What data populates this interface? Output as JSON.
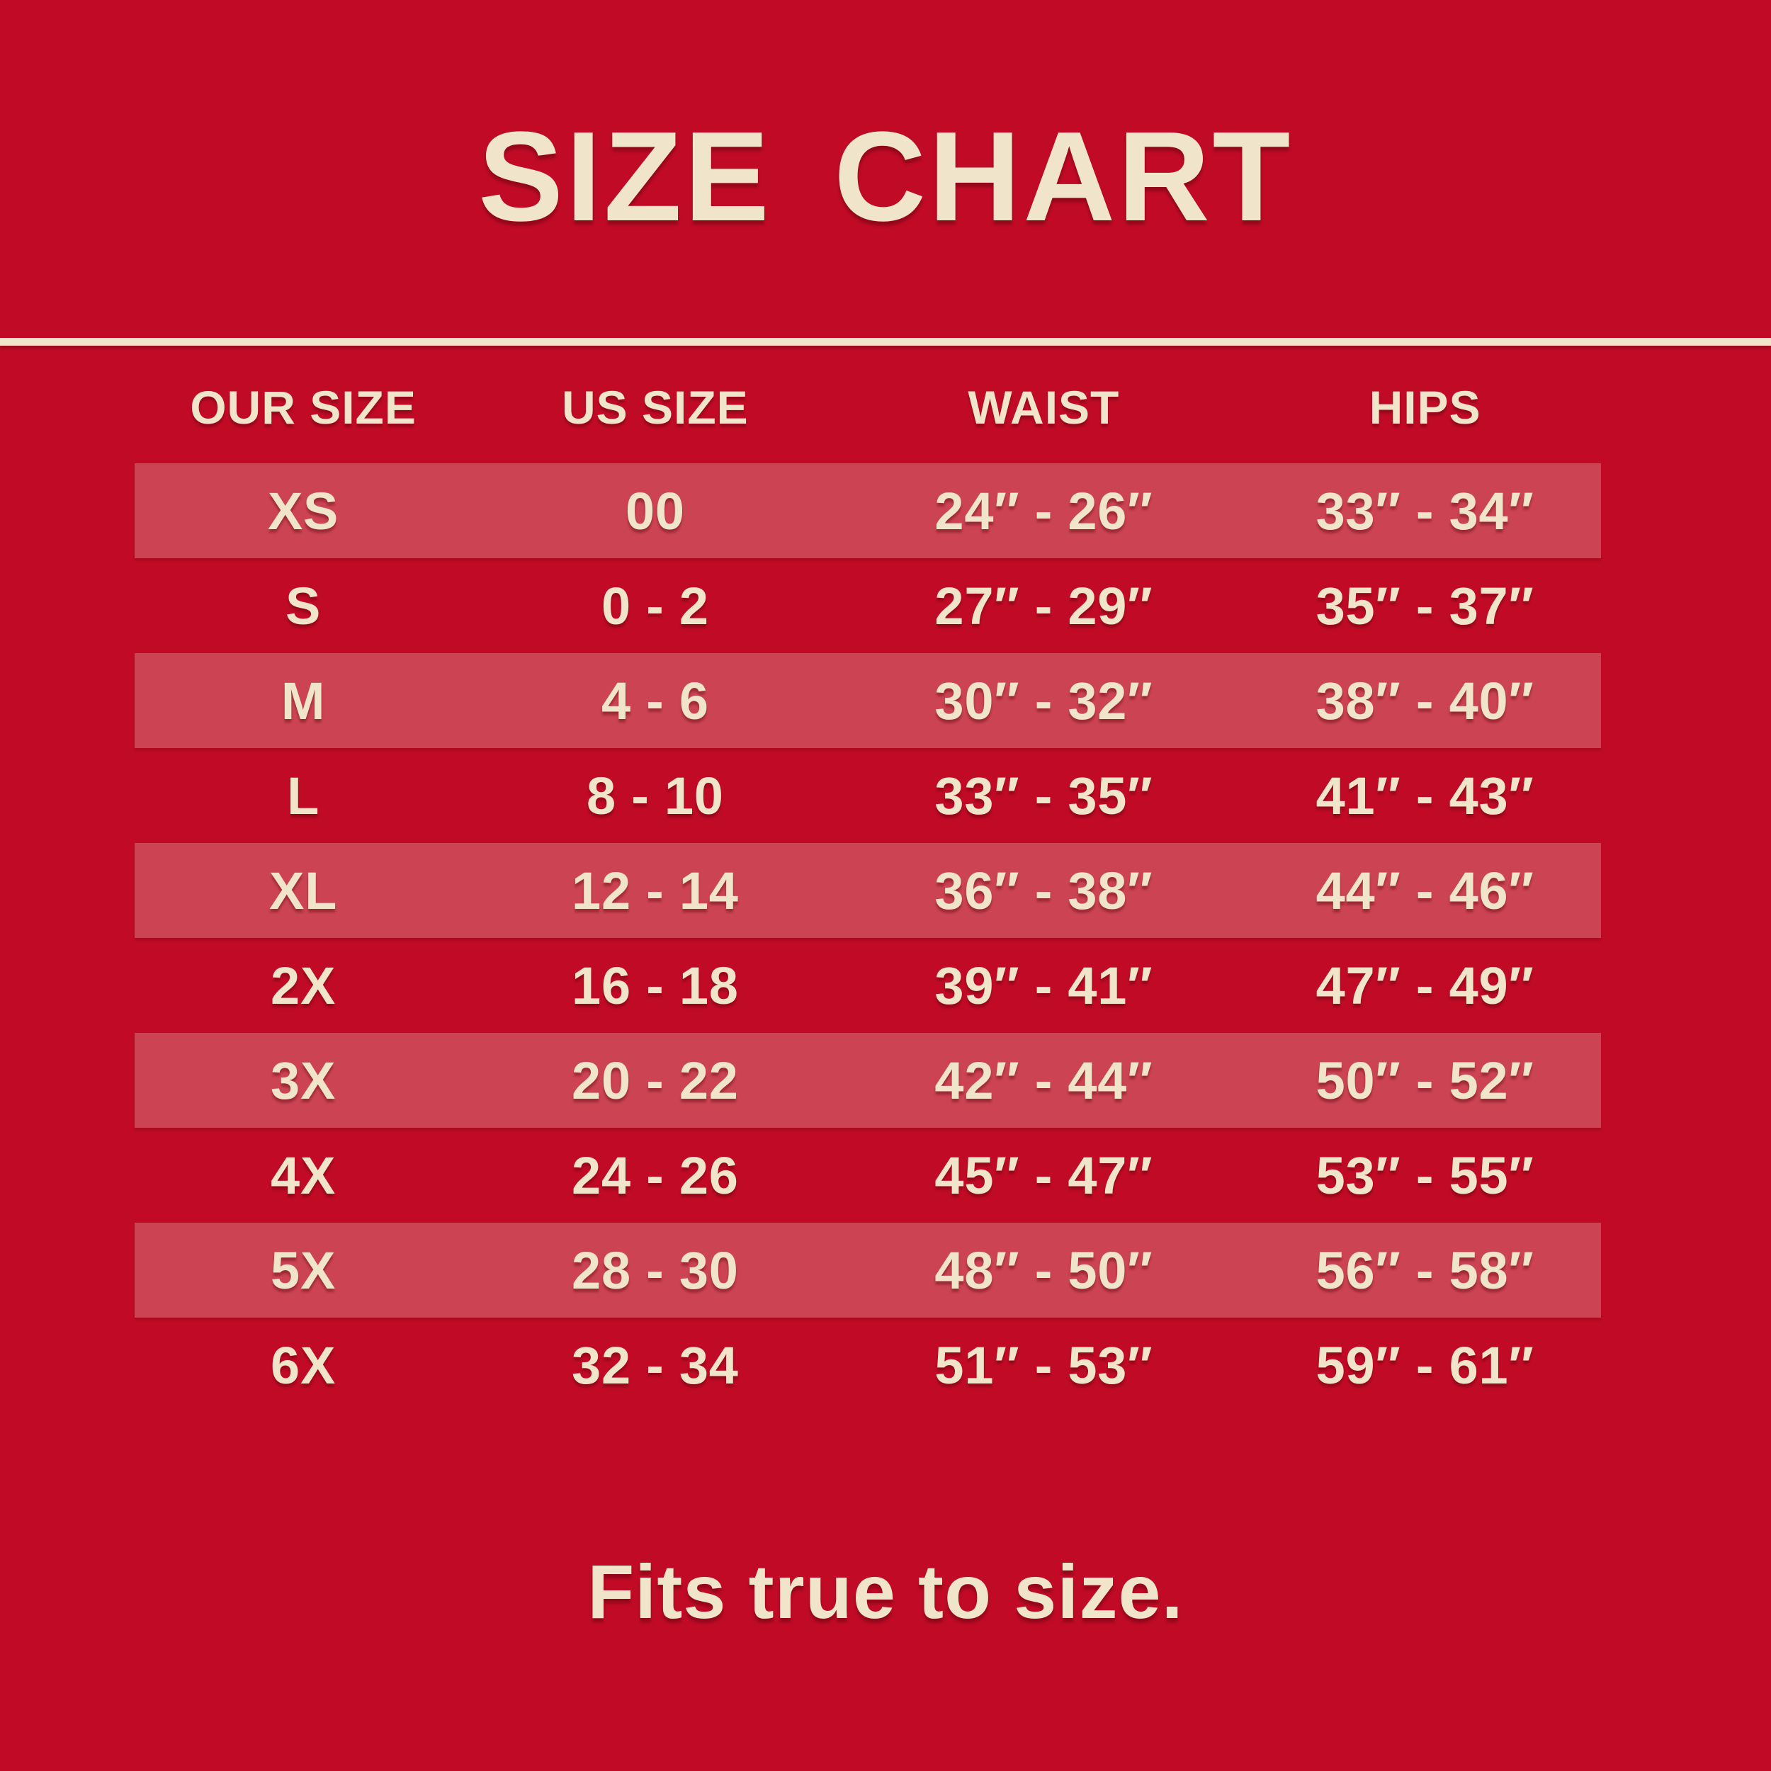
{
  "title": "SIZE CHART",
  "footer": "Fits true to size.",
  "colors": {
    "background": "#c10b26",
    "band": "#cc4454",
    "text": "#f0e4cb"
  },
  "chart_data": {
    "type": "table",
    "title": "SIZE CHART",
    "columns": [
      "OUR SIZE",
      "US SIZE",
      "WAIST",
      "HIPS"
    ],
    "rows": [
      [
        "XS",
        "00",
        "24″ - 26″",
        "33″ - 34″"
      ],
      [
        "S",
        "0 - 2",
        "27″ - 29″",
        "35″ - 37″"
      ],
      [
        "M",
        "4 - 6",
        "30″ - 32″",
        "38″ - 40″"
      ],
      [
        "L",
        "8 - 10",
        "33″ - 35″",
        "41″ - 43″"
      ],
      [
        "XL",
        "12 - 14",
        "36″ - 38″",
        "44″ - 46″"
      ],
      [
        "2X",
        "16 - 18",
        "39″ - 41″",
        "47″ - 49″"
      ],
      [
        "3X",
        "20 - 22",
        "42″ - 44″",
        "50″ - 52″"
      ],
      [
        "4X",
        "24 - 26",
        "45″ - 47″",
        "53″ - 55″"
      ],
      [
        "5X",
        "28 - 30",
        "48″ - 50″",
        "56″ - 58″"
      ],
      [
        "6X",
        "32 - 34",
        "51″ - 53″",
        "59″ - 61″"
      ]
    ],
    "banded_row_indexes": [
      0,
      2,
      4,
      6,
      8
    ],
    "note": "Fits true to size."
  }
}
